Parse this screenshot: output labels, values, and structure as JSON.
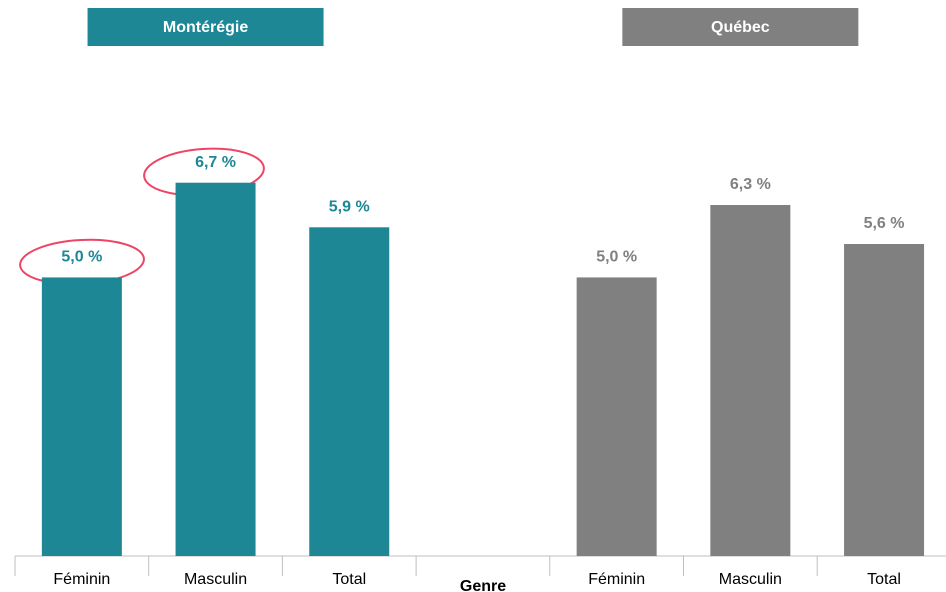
{
  "chart_data": {
    "type": "bar",
    "x_label": "Genre",
    "categories": [
      "Féminin",
      "Masculin",
      "Total",
      null,
      "Féminin",
      "Masculin",
      "Total"
    ],
    "series": [
      {
        "name": "Montérégie",
        "color": "#1d8796",
        "values": [
          5.0,
          6.7,
          5.9,
          null,
          null,
          null,
          null
        ],
        "value_labels": [
          "5,0 %",
          "6,7 %",
          "5,9 %",
          null,
          null,
          null,
          null
        ]
      },
      {
        "name": "Québec",
        "color": "#808080",
        "values": [
          null,
          null,
          null,
          null,
          5.0,
          6.3,
          5.6
        ],
        "value_labels": [
          null,
          null,
          null,
          null,
          "5,0 %",
          "6,3 %",
          "5,6 %"
        ]
      }
    ],
    "ylim": [
      0,
      7
    ]
  }
}
